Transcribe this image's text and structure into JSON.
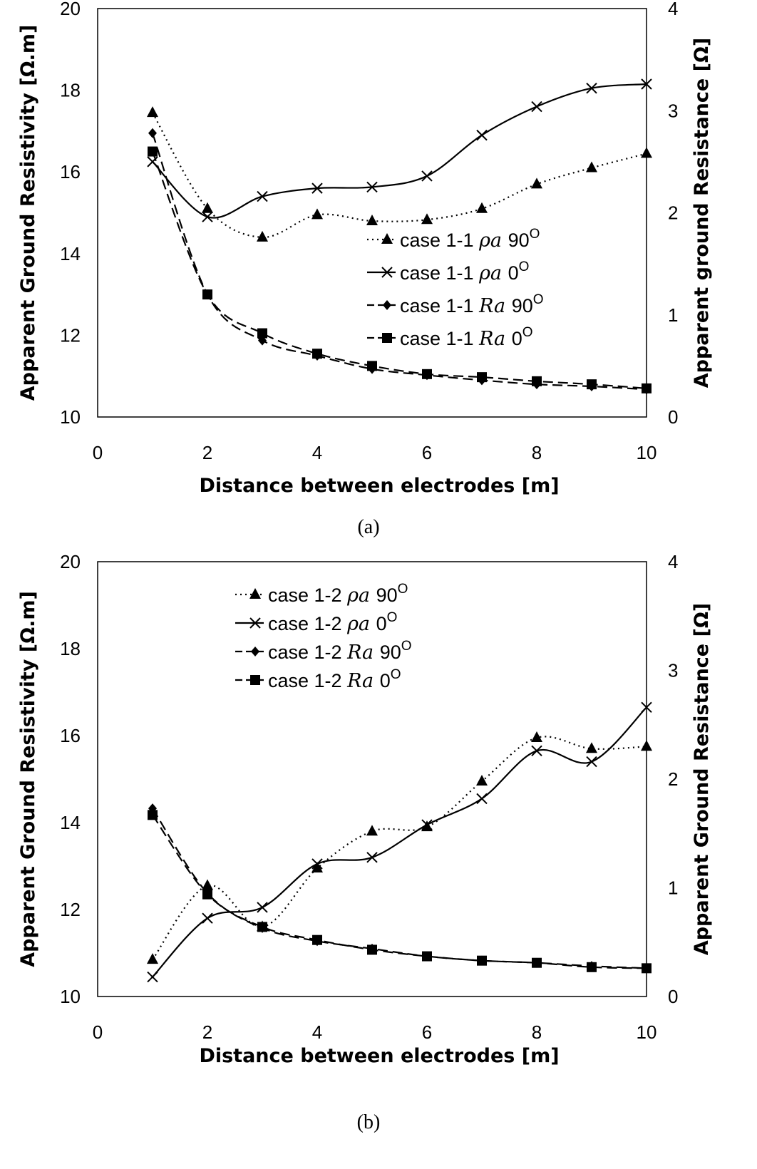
{
  "chart_data": [
    {
      "panel_caption": "(a)",
      "type": "line",
      "xlabel": "Distance between electrodes [m]",
      "ylabel": "Apparent Ground Resistivity [Ω.m]",
      "y2label": "Apparent ground Resistance [Ω]",
      "xlim": [
        0,
        10
      ],
      "ylim": [
        10,
        20
      ],
      "y2lim": [
        0,
        4
      ],
      "xticks": [
        0,
        2,
        4,
        6,
        8,
        10
      ],
      "yticks": [
        10,
        12,
        14,
        16,
        18,
        20
      ],
      "y2ticks": [
        0,
        1,
        2,
        3,
        4
      ],
      "legend_position": "center-right",
      "grid": false,
      "series": [
        {
          "label_case": "case 1-1",
          "label_symbol": "ρa",
          "label_angle": "90O",
          "axis": "left",
          "marker": "triangle",
          "line": "dotted",
          "x": [
            1,
            2,
            3,
            4,
            5,
            6,
            7,
            8,
            9,
            10
          ],
          "y": [
            17.45,
            15.1,
            14.4,
            14.95,
            14.8,
            14.83,
            15.1,
            15.7,
            16.1,
            16.45
          ]
        },
        {
          "label_case": "case 1-1",
          "label_symbol": "ρa",
          "label_angle": "0O",
          "axis": "left",
          "marker": "x",
          "line": "solid",
          "x": [
            1,
            2,
            3,
            4,
            5,
            6,
            7,
            8,
            9,
            10
          ],
          "y": [
            16.25,
            14.9,
            15.4,
            15.6,
            15.63,
            15.9,
            16.9,
            17.6,
            18.05,
            18.15
          ]
        },
        {
          "label_case": "case 1-1",
          "label_symbol": "Ra",
          "label_angle": "90O",
          "axis": "right",
          "marker": "diamond",
          "line": "dashed",
          "x": [
            1,
            2,
            3,
            4,
            5,
            6,
            7,
            8,
            9,
            10
          ],
          "y": [
            2.78,
            1.2,
            0.75,
            0.6,
            0.47,
            0.41,
            0.36,
            0.32,
            0.3,
            0.27
          ]
        },
        {
          "label_case": "case 1-1",
          "label_symbol": "Ra",
          "label_angle": "0O",
          "axis": "right",
          "marker": "square",
          "line": "dashed",
          "x": [
            1,
            2,
            3,
            4,
            5,
            6,
            7,
            8,
            9,
            10
          ],
          "y": [
            2.6,
            1.2,
            0.82,
            0.62,
            0.5,
            0.42,
            0.39,
            0.35,
            0.32,
            0.28
          ]
        }
      ]
    },
    {
      "panel_caption": "(b)",
      "type": "line",
      "xlabel": "Distance between electrodes [m]",
      "ylabel": "Apparent Ground Resistivity [Ω.m]",
      "y2label": "Apparent Ground Resistance [Ω]",
      "xlim": [
        0,
        10
      ],
      "ylim": [
        10,
        20
      ],
      "y2lim": [
        0,
        4
      ],
      "xticks": [
        0,
        2,
        4,
        6,
        8,
        10
      ],
      "yticks": [
        10,
        12,
        14,
        16,
        18,
        20
      ],
      "y2ticks": [
        0,
        1,
        2,
        3,
        4
      ],
      "legend_position": "top-left",
      "grid": false,
      "series": [
        {
          "label_case": "case 1-2",
          "label_symbol": "ρa",
          "label_angle": "90O",
          "axis": "left",
          "marker": "triangle",
          "line": "dotted",
          "x": [
            1,
            2,
            3,
            4,
            5,
            6,
            7,
            8,
            9,
            10
          ],
          "y": [
            10.85,
            12.55,
            11.6,
            12.95,
            13.8,
            13.9,
            14.95,
            15.95,
            15.7,
            15.75
          ]
        },
        {
          "label_case": "case 1-2",
          "label_symbol": "ρa",
          "label_angle": "0O",
          "axis": "left",
          "marker": "x",
          "line": "solid",
          "x": [
            1,
            2,
            3,
            4,
            5,
            6,
            7,
            8,
            9,
            10
          ],
          "y": [
            10.45,
            11.8,
            12.05,
            13.05,
            13.2,
            13.95,
            14.55,
            15.65,
            15.4,
            16.65
          ]
        },
        {
          "label_case": "case 1-2",
          "label_symbol": "Ra",
          "label_angle": "90O",
          "axis": "right",
          "marker": "diamond",
          "line": "dashed",
          "x": [
            1,
            2,
            3,
            4,
            5,
            6,
            7,
            8,
            9,
            10
          ],
          "y": [
            1.73,
            0.95,
            0.63,
            0.51,
            0.44,
            0.37,
            0.33,
            0.31,
            0.28,
            0.26
          ]
        },
        {
          "label_case": "case 1-2",
          "label_symbol": "Ra",
          "label_angle": "0O",
          "axis": "right",
          "marker": "square",
          "line": "dashed",
          "x": [
            1,
            2,
            3,
            4,
            5,
            6,
            7,
            8,
            9,
            10
          ],
          "y": [
            1.67,
            0.94,
            0.64,
            0.52,
            0.43,
            0.37,
            0.33,
            0.31,
            0.27,
            0.26
          ]
        }
      ]
    }
  ]
}
